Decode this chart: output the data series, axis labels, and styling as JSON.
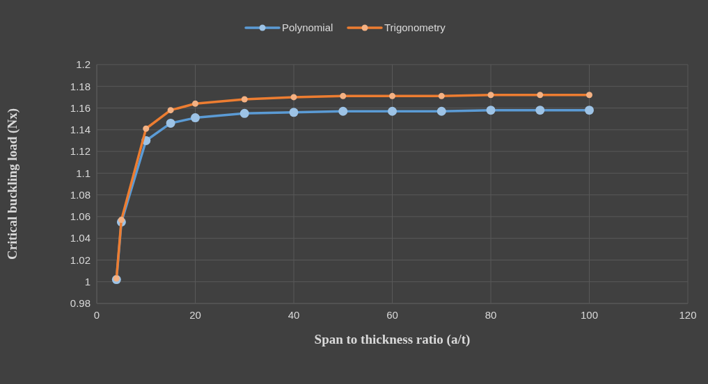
{
  "chart_data": {
    "type": "line",
    "xlabel": "Span to thickness ratio (a/t)",
    "ylabel": "Critical buckling load (Nx)",
    "x": [
      4,
      5,
      10,
      15,
      20,
      30,
      40,
      50,
      60,
      70,
      80,
      90,
      100
    ],
    "series": [
      {
        "name": "Polynomial",
        "color": "#5b9bd5",
        "values": [
          1.002,
          1.055,
          1.13,
          1.146,
          1.151,
          1.155,
          1.156,
          1.157,
          1.157,
          1.157,
          1.158,
          1.158,
          1.158
        ]
      },
      {
        "name": "Trigonometry",
        "color": "#ed7d31",
        "values": [
          1.003,
          1.057,
          1.141,
          1.158,
          1.164,
          1.168,
          1.17,
          1.171,
          1.171,
          1.171,
          1.172,
          1.172,
          1.172
        ]
      }
    ],
    "xlim": [
      0,
      120
    ],
    "xticks": [
      0,
      20,
      40,
      60,
      80,
      100,
      120
    ],
    "ylim": [
      0.98,
      1.2
    ],
    "yticks": [
      0.98,
      1,
      1.02,
      1.04,
      1.06,
      1.08,
      1.1,
      1.12,
      1.14,
      1.16,
      1.18,
      1.2
    ],
    "grid": true,
    "legend": "top",
    "marker": "circle",
    "line_style": "solid"
  }
}
